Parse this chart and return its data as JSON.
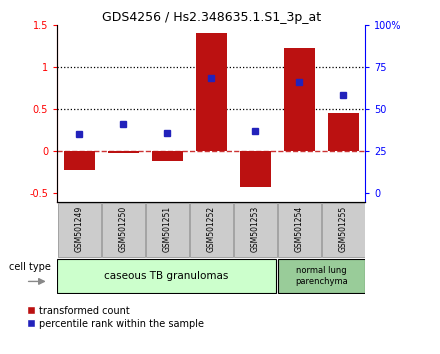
{
  "title": "GDS4256 / Hs2.348635.1.S1_3p_at",
  "samples": [
    "GSM501249",
    "GSM501250",
    "GSM501251",
    "GSM501252",
    "GSM501253",
    "GSM501254",
    "GSM501255"
  ],
  "transformed_counts": [
    -0.22,
    -0.02,
    -0.12,
    1.4,
    -0.42,
    1.22,
    0.45
  ],
  "percentile_ranks_left": [
    0.2,
    0.32,
    0.22,
    0.87,
    0.24,
    0.82,
    0.67
  ],
  "ylim_left": [
    -0.6,
    1.5
  ],
  "left_ticks": [
    -0.5,
    0,
    0.5,
    1.0,
    1.5
  ],
  "left_tick_labels": [
    "-0.5",
    "0",
    "0.5",
    "1",
    "1.5"
  ],
  "right_ticks": [
    0,
    25,
    50,
    75,
    100
  ],
  "right_tick_labels": [
    "0",
    "25",
    "50",
    "75",
    "100%"
  ],
  "bar_color": "#BB1111",
  "dot_color": "#2222BB",
  "zero_line_color": "#CC3333",
  "group1_label": "caseous TB granulomas",
  "group2_label": "normal lung\nparenchyma",
  "group1_count": 5,
  "group2_count": 2,
  "cell_type_label": "cell type",
  "legend_bar_label": "transformed count",
  "legend_dot_label": "percentile rank within the sample",
  "bg_color_xtick": "#CCCCCC",
  "bg_color_group1": "#CCFFCC",
  "bg_color_group2": "#99CC99",
  "dotted_lines": [
    0.5,
    1.0
  ],
  "bar_width": 0.7
}
